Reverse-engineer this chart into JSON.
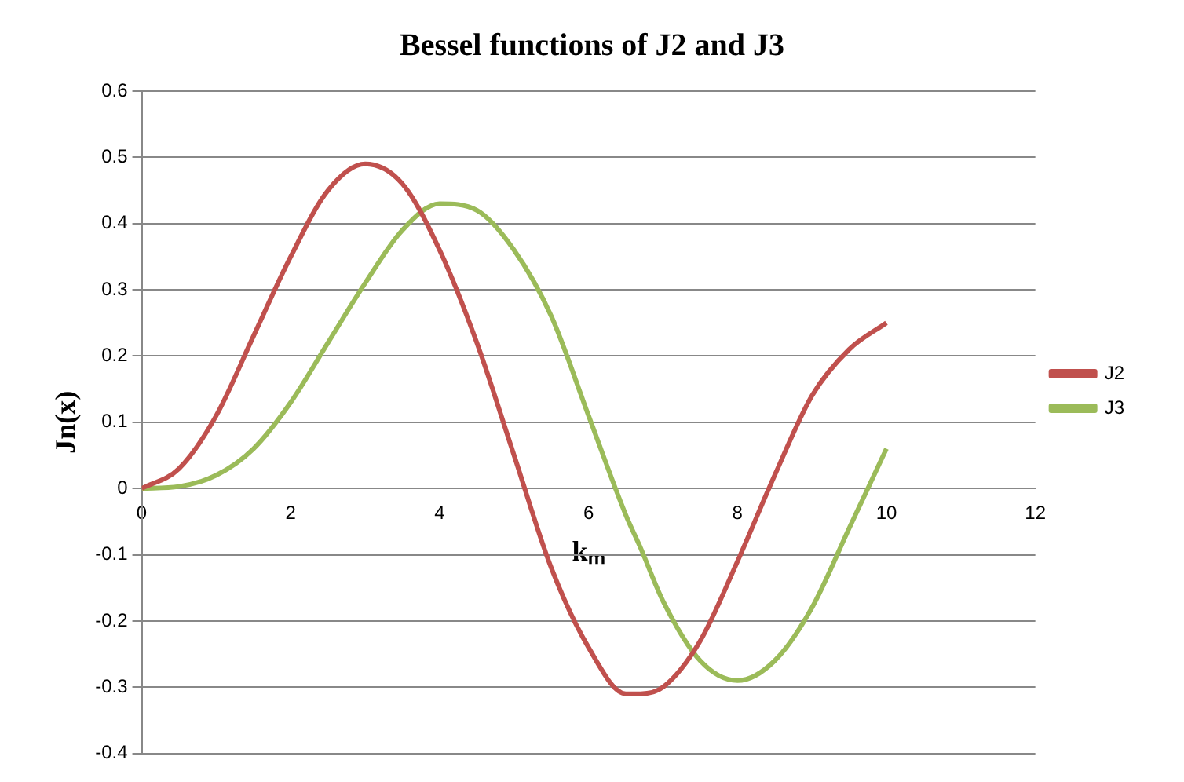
{
  "chart_data": {
    "type": "line",
    "title": "Bessel functions of J2 and J3",
    "xlabel": "kₘ",
    "ylabel": "Jn(x)",
    "x": [
      0,
      0.5,
      1,
      1.5,
      2,
      2.5,
      3,
      3.5,
      4,
      4.5,
      5,
      5.5,
      6,
      6.5,
      6.7,
      7,
      7.5,
      8,
      8.5,
      9,
      9.5,
      10
    ],
    "series": [
      {
        "name": "J2",
        "color": "#c0504d",
        "values": [
          0,
          0.03,
          0.11,
          0.23,
          0.35,
          0.45,
          0.49,
          0.46,
          0.36,
          0.22,
          0.05,
          -0.12,
          -0.24,
          -0.31,
          -0.31,
          -0.3,
          -0.23,
          -0.11,
          0.02,
          0.14,
          0.21,
          0.25
        ]
      },
      {
        "name": "J3",
        "color": "#9bbb59",
        "values": [
          0,
          0.003,
          0.02,
          0.06,
          0.13,
          0.22,
          0.31,
          0.39,
          0.43,
          0.42,
          0.36,
          0.26,
          0.11,
          -0.04,
          -0.09,
          -0.17,
          -0.26,
          -0.29,
          -0.26,
          -0.18,
          -0.06,
          0.06
        ]
      }
    ],
    "xlim": [
      0,
      12
    ],
    "xticks": [
      0,
      2,
      4,
      6,
      8,
      10,
      12
    ],
    "ylim": [
      -0.4,
      0.6
    ],
    "yticks": [
      -0.4,
      -0.3,
      -0.2,
      -0.1,
      0,
      0.1,
      0.2,
      0.3,
      0.4,
      0.5,
      0.6
    ],
    "grid": "y",
    "legend": "right",
    "marker": "none",
    "line_style": "solid"
  }
}
